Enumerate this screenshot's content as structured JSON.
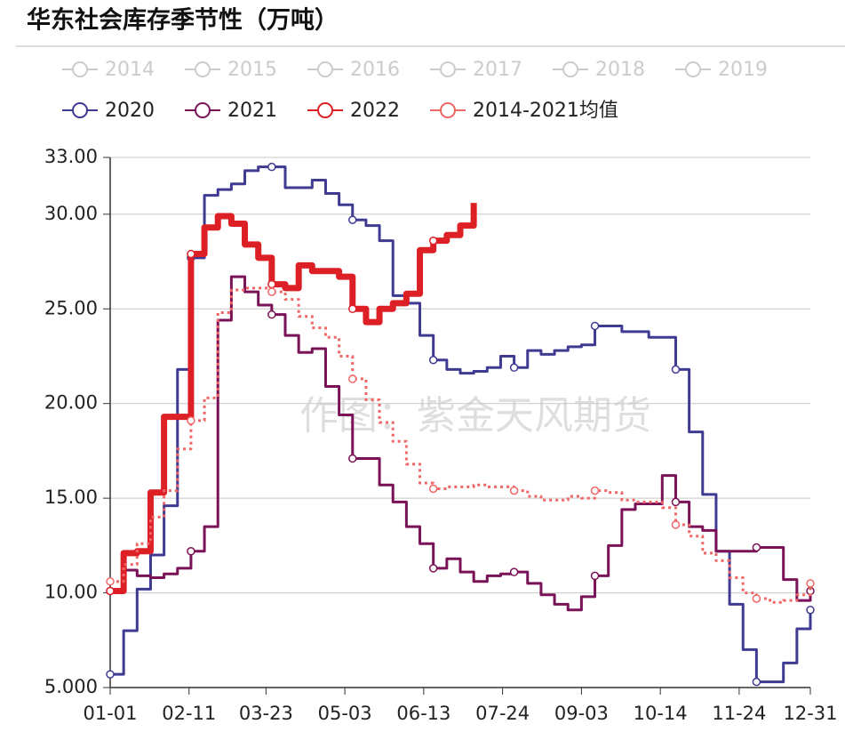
{
  "chart_data": {
    "type": "line",
    "title": "华东社会库存季节性（万吨）",
    "watermark": "作图：紫金天风期货",
    "inactive_legend": [
      "2014",
      "2015",
      "2016",
      "2017",
      "2018",
      "2019"
    ],
    "inactive_color": "#cccccc",
    "x": [
      0,
      7,
      14,
      21,
      28,
      35,
      42,
      49,
      56,
      63,
      70,
      77,
      84,
      91,
      98,
      105,
      112,
      119,
      126,
      133,
      140,
      147,
      154,
      161,
      168,
      175,
      182,
      189,
      196,
      203,
      210,
      217,
      224,
      231,
      238,
      245,
      252,
      259,
      266,
      273,
      280,
      287,
      294,
      301,
      308,
      315,
      322,
      329,
      336,
      343,
      350,
      357,
      364
    ],
    "xlim": [
      0,
      364
    ],
    "xticks": [
      {
        "value": 0,
        "label": "01-01"
      },
      {
        "value": 41,
        "label": "02-11"
      },
      {
        "value": 81,
        "label": "03-23"
      },
      {
        "value": 122,
        "label": "05-03"
      },
      {
        "value": 163,
        "label": "06-13"
      },
      {
        "value": 204,
        "label": "07-24"
      },
      {
        "value": 245,
        "label": "09-03"
      },
      {
        "value": 286,
        "label": "10-14"
      },
      {
        "value": 327,
        "label": "11-24"
      },
      {
        "value": 364,
        "label": "12-31"
      }
    ],
    "ylim": [
      5,
      33
    ],
    "yticks": [
      {
        "value": 5,
        "label": "5.000"
      },
      {
        "value": 10,
        "label": "10.00"
      },
      {
        "value": 15,
        "label": "15.00"
      },
      {
        "value": 20,
        "label": "20.00"
      },
      {
        "value": 25,
        "label": "25.00"
      },
      {
        "value": 30,
        "label": "30.00"
      },
      {
        "value": 33,
        "label": "33.00"
      }
    ],
    "grid": true,
    "series": [
      {
        "name": "2020",
        "color": "#3f3a92",
        "width": 3,
        "dash": false,
        "values": [
          5.7,
          8.0,
          10.2,
          12.0,
          14.6,
          21.8,
          27.7,
          31.0,
          31.3,
          31.6,
          32.3,
          32.5,
          32.5,
          31.4,
          31.4,
          31.8,
          31.1,
          30.5,
          29.7,
          29.4,
          28.6,
          25.7,
          25.3,
          23.6,
          22.3,
          21.8,
          21.6,
          21.7,
          21.9,
          22.5,
          21.9,
          22.8,
          22.6,
          22.8,
          23.0,
          23.1,
          24.1,
          24.1,
          23.8,
          23.8,
          23.5,
          23.5,
          21.8,
          18.5,
          15.2,
          12.2,
          9.4,
          7.0,
          5.3,
          5.3,
          6.3,
          8.1,
          9.1
        ]
      },
      {
        "name": "2021",
        "color": "#7a1257",
        "width": 3,
        "dash": false,
        "values": [
          10.1,
          11.2,
          10.9,
          10.8,
          11.0,
          11.3,
          12.2,
          13.5,
          24.4,
          26.7,
          25.9,
          25.2,
          24.7,
          23.6,
          22.7,
          22.9,
          20.9,
          19.4,
          17.1,
          17.1,
          15.7,
          14.8,
          13.5,
          12.6,
          11.3,
          11.8,
          11.1,
          10.6,
          10.9,
          11.0,
          11.1,
          10.5,
          9.9,
          9.4,
          9.1,
          9.8,
          10.9,
          12.5,
          14.4,
          14.7,
          14.7,
          16.2,
          14.8,
          13.5,
          13.3,
          12.2,
          12.2,
          12.2,
          12.4,
          12.4,
          10.7,
          9.6,
          10.1
        ]
      },
      {
        "name": "2022",
        "color": "#dc2026",
        "width": 7,
        "dash": false,
        "values": [
          10.1,
          12.1,
          12.2,
          15.3,
          19.3,
          19.3,
          27.9,
          29.3,
          29.9,
          29.5,
          28.4,
          27.7,
          26.3,
          26.1,
          27.3,
          27.0,
          27.0,
          26.7,
          25.0,
          24.3,
          25.0,
          25.3,
          25.8,
          28.1,
          28.6,
          28.9,
          29.4,
          30.6,
          null,
          null,
          null,
          null,
          null,
          null,
          null,
          null,
          null,
          null,
          null,
          null,
          null,
          null,
          null,
          null,
          null,
          null,
          null,
          null,
          null,
          null,
          null,
          null,
          null
        ]
      },
      {
        "name": "2014-2021均值",
        "color": "#f06666",
        "width": 3,
        "dash": true,
        "values": [
          10.6,
          11.5,
          12.6,
          14.0,
          15.4,
          17.6,
          19.1,
          20.3,
          24.8,
          26.0,
          26.1,
          26.1,
          25.9,
          25.5,
          24.6,
          24.0,
          23.5,
          22.5,
          21.3,
          20.2,
          19.0,
          18.0,
          16.8,
          15.8,
          15.5,
          15.6,
          15.6,
          15.7,
          15.6,
          15.6,
          15.4,
          15.1,
          14.9,
          14.9,
          15.1,
          15.0,
          15.4,
          15.3,
          14.9,
          14.8,
          14.8,
          14.5,
          13.6,
          13.0,
          12.1,
          11.7,
          10.8,
          10.0,
          9.7,
          9.5,
          9.6,
          9.9,
          10.5
        ]
      }
    ]
  }
}
